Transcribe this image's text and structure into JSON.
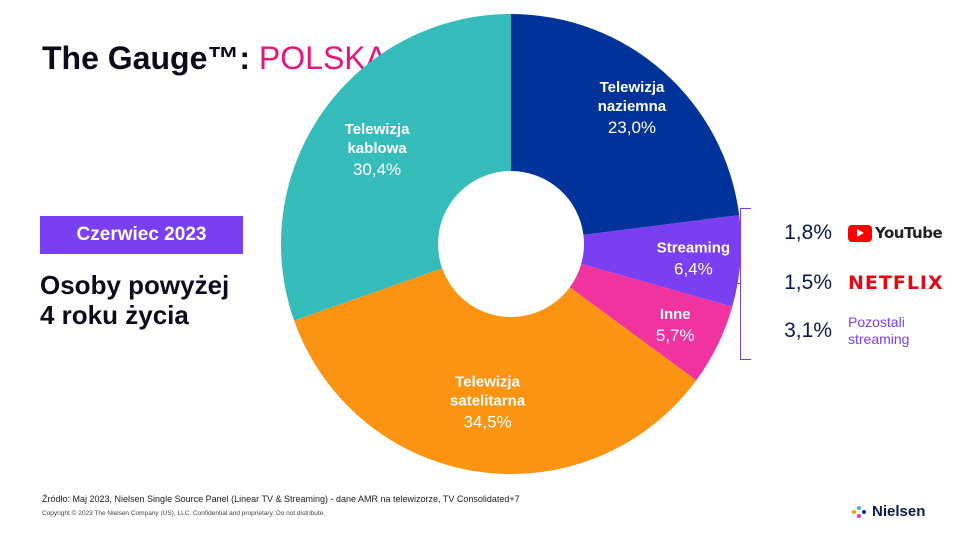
{
  "header": {
    "title_main": "The Gauge™:",
    "title_accent": "POLSKA"
  },
  "badge": {
    "label": "Czerwiec 2023"
  },
  "audience": {
    "line1": "Osoby powyżej",
    "line2": "4 roku życia"
  },
  "chart_data": {
    "type": "pie",
    "slices": [
      {
        "name_lines": [
          "Telewizja",
          "naziemna"
        ],
        "value": 23.0,
        "label": "23,0%",
        "color": "#003399"
      },
      {
        "name_lines": [
          "Streaming"
        ],
        "value": 6.4,
        "label": "6,4%",
        "color": "#7b3ff2"
      },
      {
        "name_lines": [
          "Inne"
        ],
        "value": 5.7,
        "label": "5,7%",
        "color": "#f0339f"
      },
      {
        "name_lines": [
          "Telewizja",
          "satelitarna"
        ],
        "value": 34.5,
        "label": "34,5%",
        "color": "#fb9412"
      },
      {
        "name_lines": [
          "Telewizja",
          "kablowa"
        ],
        "value": 30.4,
        "label": "30,4%",
        "color": "#36bdbb"
      }
    ]
  },
  "streaming_breakdown": [
    {
      "pct": "1,8%",
      "brand": "YouTube",
      "icon": "youtube-logo"
    },
    {
      "pct": "1,5%",
      "brand": "NETFLIX",
      "icon": "netflix-logo"
    },
    {
      "pct": "3,1%",
      "label_line1": "Pozostali",
      "label_line2": "streaming"
    }
  ],
  "footer": {
    "source": "Źródło: Maj 2023, Nielsen Single Source Panel (Linear TV & Streaming) - dane AMR na telewizorze, TV Consolidated+7",
    "copyright": "Copyright © 2023 The Nielsen Company (US), LLC. Confidential and proprietary. Do not distribute.",
    "brand": "Nielsen"
  },
  "colors": {
    "accent_pink": "#e5157a",
    "purple": "#7b3ff2",
    "navy": "#0b1a48"
  }
}
